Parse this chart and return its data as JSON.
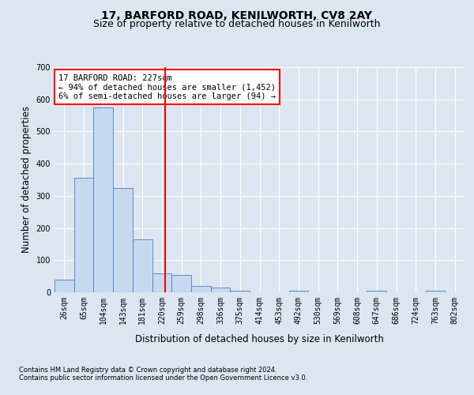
{
  "title1": "17, BARFORD ROAD, KENILWORTH, CV8 2AY",
  "title2": "Size of property relative to detached houses in Kenilworth",
  "xlabel": "Distribution of detached houses by size in Kenilworth",
  "ylabel": "Number of detached properties",
  "bar_labels": [
    "26sqm",
    "65sqm",
    "104sqm",
    "143sqm",
    "181sqm",
    "220sqm",
    "259sqm",
    "298sqm",
    "336sqm",
    "375sqm",
    "414sqm",
    "453sqm",
    "492sqm",
    "530sqm",
    "569sqm",
    "608sqm",
    "647sqm",
    "686sqm",
    "724sqm",
    "763sqm",
    "802sqm"
  ],
  "bar_heights": [
    40,
    355,
    575,
    325,
    165,
    60,
    55,
    20,
    15,
    5,
    0,
    0,
    5,
    0,
    0,
    0,
    5,
    0,
    0,
    5,
    0
  ],
  "bar_color": "#c5d9f1",
  "bar_edge_color": "#4f81bd",
  "ylim": [
    0,
    700
  ],
  "yticks": [
    0,
    100,
    200,
    300,
    400,
    500,
    600,
    700
  ],
  "property_line_x": 5.15,
  "annotation_text": "17 BARFORD ROAD: 227sqm\n← 94% of detached houses are smaller (1,452)\n6% of semi-detached houses are larger (94) →",
  "annotation_box_color": "#ffffff",
  "annotation_border_color": "#ff0000",
  "property_line_color": "#ff0000",
  "footnote1": "Contains HM Land Registry data © Crown copyright and database right 2024.",
  "footnote2": "Contains public sector information licensed under the Open Government Licence v3.0.",
  "bg_color": "#dce6f1",
  "plot_bg_color": "#dce6f1",
  "grid_color": "#ffffff",
  "title_fontsize": 10,
  "subtitle_fontsize": 9,
  "tick_fontsize": 7,
  "label_fontsize": 8.5,
  "footnote_fontsize": 6.0
}
